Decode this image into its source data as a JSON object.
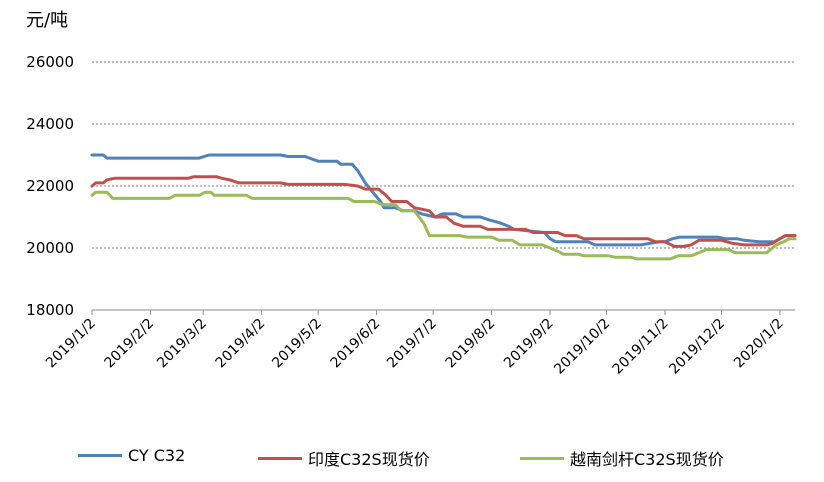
{
  "chart_data": {
    "type": "line",
    "title": "",
    "ylabel": "元/吨",
    "xlabel": "",
    "ylim": [
      18000,
      26000
    ],
    "yticks": [
      18000,
      20000,
      22000,
      24000,
      26000
    ],
    "ytick_labels": [
      "18000",
      "20000",
      "22000",
      "24000",
      "26000"
    ],
    "grid": "horizontal dashed",
    "legend_position": "bottom",
    "x_domain": [
      "2019-01-02",
      "2020-01-10"
    ],
    "xticks": [
      "2019-01-02",
      "2019-02-02",
      "2019-03-02",
      "2019-04-02",
      "2019-05-02",
      "2019-06-02",
      "2019-07-02",
      "2019-08-02",
      "2019-09-02",
      "2019-10-02",
      "2019-11-02",
      "2019-12-02",
      "2020-01-02"
    ],
    "xtick_labels": [
      "2019/1/2",
      "2019/2/2",
      "2019/3/2",
      "2019/4/2",
      "2019/5/2",
      "2019/6/2",
      "2019/7/2",
      "2019/8/2",
      "2019/9/2",
      "2019/10/2",
      "2019/11/2",
      "2019/12/2",
      "2020/1/2"
    ],
    "series": [
      {
        "name": "CY C32",
        "color": "#4F81BD",
        "points": [
          [
            "2019-01-02",
            23000
          ],
          [
            "2019-01-08",
            23000
          ],
          [
            "2019-01-10",
            22900
          ],
          [
            "2019-02-28",
            22900
          ],
          [
            "2019-03-05",
            23000
          ],
          [
            "2019-04-12",
            23000
          ],
          [
            "2019-04-16",
            22950
          ],
          [
            "2019-04-25",
            22950
          ],
          [
            "2019-05-02",
            22800
          ],
          [
            "2019-05-12",
            22800
          ],
          [
            "2019-05-14",
            22700
          ],
          [
            "2019-05-20",
            22700
          ],
          [
            "2019-05-23",
            22500
          ],
          [
            "2019-05-27",
            22100
          ],
          [
            "2019-05-31",
            21800
          ],
          [
            "2019-06-04",
            21500
          ],
          [
            "2019-06-06",
            21300
          ],
          [
            "2019-06-12",
            21300
          ],
          [
            "2019-06-16",
            21200
          ],
          [
            "2019-06-22",
            21200
          ],
          [
            "2019-06-26",
            21100
          ],
          [
            "2019-07-03",
            21000
          ],
          [
            "2019-07-07",
            21100
          ],
          [
            "2019-07-14",
            21100
          ],
          [
            "2019-07-18",
            21000
          ],
          [
            "2019-07-27",
            21000
          ],
          [
            "2019-08-01",
            20900
          ],
          [
            "2019-08-07",
            20800
          ],
          [
            "2019-08-11",
            20700
          ],
          [
            "2019-08-14",
            20600
          ],
          [
            "2019-08-30",
            20500
          ],
          [
            "2019-09-02",
            20300
          ],
          [
            "2019-09-05",
            20200
          ],
          [
            "2019-09-22",
            20200
          ],
          [
            "2019-09-26",
            20100
          ],
          [
            "2019-10-20",
            20100
          ],
          [
            "2019-10-30",
            20200
          ],
          [
            "2019-11-02",
            20200
          ],
          [
            "2019-11-06",
            20300
          ],
          [
            "2019-11-10",
            20350
          ],
          [
            "2019-11-30",
            20350
          ],
          [
            "2019-12-04",
            20300
          ],
          [
            "2019-12-10",
            20300
          ],
          [
            "2019-12-14",
            20250
          ],
          [
            "2019-12-22",
            20200
          ],
          [
            "2019-12-30",
            20200
          ],
          [
            "2020-01-02",
            20300
          ],
          [
            "2020-01-05",
            20400
          ],
          [
            "2020-01-10",
            20400
          ]
        ]
      },
      {
        "name": "印度C32S现货价",
        "color": "#C0504D",
        "points": [
          [
            "2019-01-02",
            22000
          ],
          [
            "2019-01-04",
            22100
          ],
          [
            "2019-01-08",
            22100
          ],
          [
            "2019-01-10",
            22200
          ],
          [
            "2019-01-14",
            22250
          ],
          [
            "2019-02-22",
            22250
          ],
          [
            "2019-02-25",
            22300
          ],
          [
            "2019-03-09",
            22300
          ],
          [
            "2019-03-12",
            22250
          ],
          [
            "2019-03-16",
            22200
          ],
          [
            "2019-03-21",
            22100
          ],
          [
            "2019-04-12",
            22100
          ],
          [
            "2019-04-16",
            22050
          ],
          [
            "2019-05-16",
            22050
          ],
          [
            "2019-05-23",
            22000
          ],
          [
            "2019-05-27",
            21900
          ],
          [
            "2019-06-03",
            21900
          ],
          [
            "2019-06-07",
            21700
          ],
          [
            "2019-06-10",
            21500
          ],
          [
            "2019-06-18",
            21500
          ],
          [
            "2019-06-22",
            21300
          ],
          [
            "2019-06-30",
            21200
          ],
          [
            "2019-07-03",
            21000
          ],
          [
            "2019-07-09",
            21000
          ],
          [
            "2019-07-13",
            20800
          ],
          [
            "2019-07-18",
            20700
          ],
          [
            "2019-07-27",
            20700
          ],
          [
            "2019-07-31",
            20600
          ],
          [
            "2019-08-20",
            20600
          ],
          [
            "2019-08-24",
            20500
          ],
          [
            "2019-09-06",
            20500
          ],
          [
            "2019-09-10",
            20400
          ],
          [
            "2019-09-16",
            20400
          ],
          [
            "2019-09-20",
            20300
          ],
          [
            "2019-10-24",
            20300
          ],
          [
            "2019-10-28",
            20200
          ],
          [
            "2019-11-02",
            20200
          ],
          [
            "2019-11-07",
            20050
          ],
          [
            "2019-11-12",
            20050
          ],
          [
            "2019-11-16",
            20100
          ],
          [
            "2019-11-20",
            20250
          ],
          [
            "2019-12-02",
            20250
          ],
          [
            "2019-12-08",
            20150
          ],
          [
            "2019-12-14",
            20100
          ],
          [
            "2019-12-26",
            20100
          ],
          [
            "2019-12-29",
            20150
          ],
          [
            "2020-01-02",
            20300
          ],
          [
            "2020-01-05",
            20400
          ],
          [
            "2020-01-10",
            20400
          ]
        ]
      },
      {
        "name": "越南剑杆C32S现货价",
        "color": "#9BBB59",
        "points": [
          [
            "2019-01-02",
            21700
          ],
          [
            "2019-01-04",
            21800
          ],
          [
            "2019-01-10",
            21800
          ],
          [
            "2019-01-13",
            21600
          ],
          [
            "2019-02-12",
            21600
          ],
          [
            "2019-02-15",
            21700
          ],
          [
            "2019-02-28",
            21700
          ],
          [
            "2019-03-03",
            21800
          ],
          [
            "2019-03-06",
            21800
          ],
          [
            "2019-03-08",
            21700
          ],
          [
            "2019-03-25",
            21700
          ],
          [
            "2019-03-28",
            21600
          ],
          [
            "2019-05-18",
            21600
          ],
          [
            "2019-05-21",
            21500
          ],
          [
            "2019-06-01",
            21500
          ],
          [
            "2019-06-05",
            21400
          ],
          [
            "2019-06-12",
            21400
          ],
          [
            "2019-06-15",
            21200
          ],
          [
            "2019-06-22",
            21200
          ],
          [
            "2019-06-27",
            20800
          ],
          [
            "2019-06-30",
            20400
          ],
          [
            "2019-07-16",
            20400
          ],
          [
            "2019-07-20",
            20350
          ],
          [
            "2019-08-02",
            20350
          ],
          [
            "2019-08-06",
            20250
          ],
          [
            "2019-08-13",
            20250
          ],
          [
            "2019-08-17",
            20100
          ],
          [
            "2019-08-29",
            20100
          ],
          [
            "2019-09-02",
            20000
          ],
          [
            "2019-09-06",
            19900
          ],
          [
            "2019-09-09",
            19800
          ],
          [
            "2019-09-17",
            19800
          ],
          [
            "2019-09-20",
            19750
          ],
          [
            "2019-10-03",
            19750
          ],
          [
            "2019-10-07",
            19700
          ],
          [
            "2019-10-15",
            19700
          ],
          [
            "2019-10-18",
            19650
          ],
          [
            "2019-11-05",
            19650
          ],
          [
            "2019-11-09",
            19750
          ],
          [
            "2019-11-16",
            19750
          ],
          [
            "2019-11-20",
            19850
          ],
          [
            "2019-11-24",
            19950
          ],
          [
            "2019-12-06",
            19950
          ],
          [
            "2019-12-09",
            19850
          ],
          [
            "2019-12-26",
            19850
          ],
          [
            "2019-12-31",
            20100
          ],
          [
            "2020-01-04",
            20200
          ],
          [
            "2020-01-07",
            20300
          ],
          [
            "2020-01-10",
            20300
          ]
        ]
      }
    ]
  }
}
